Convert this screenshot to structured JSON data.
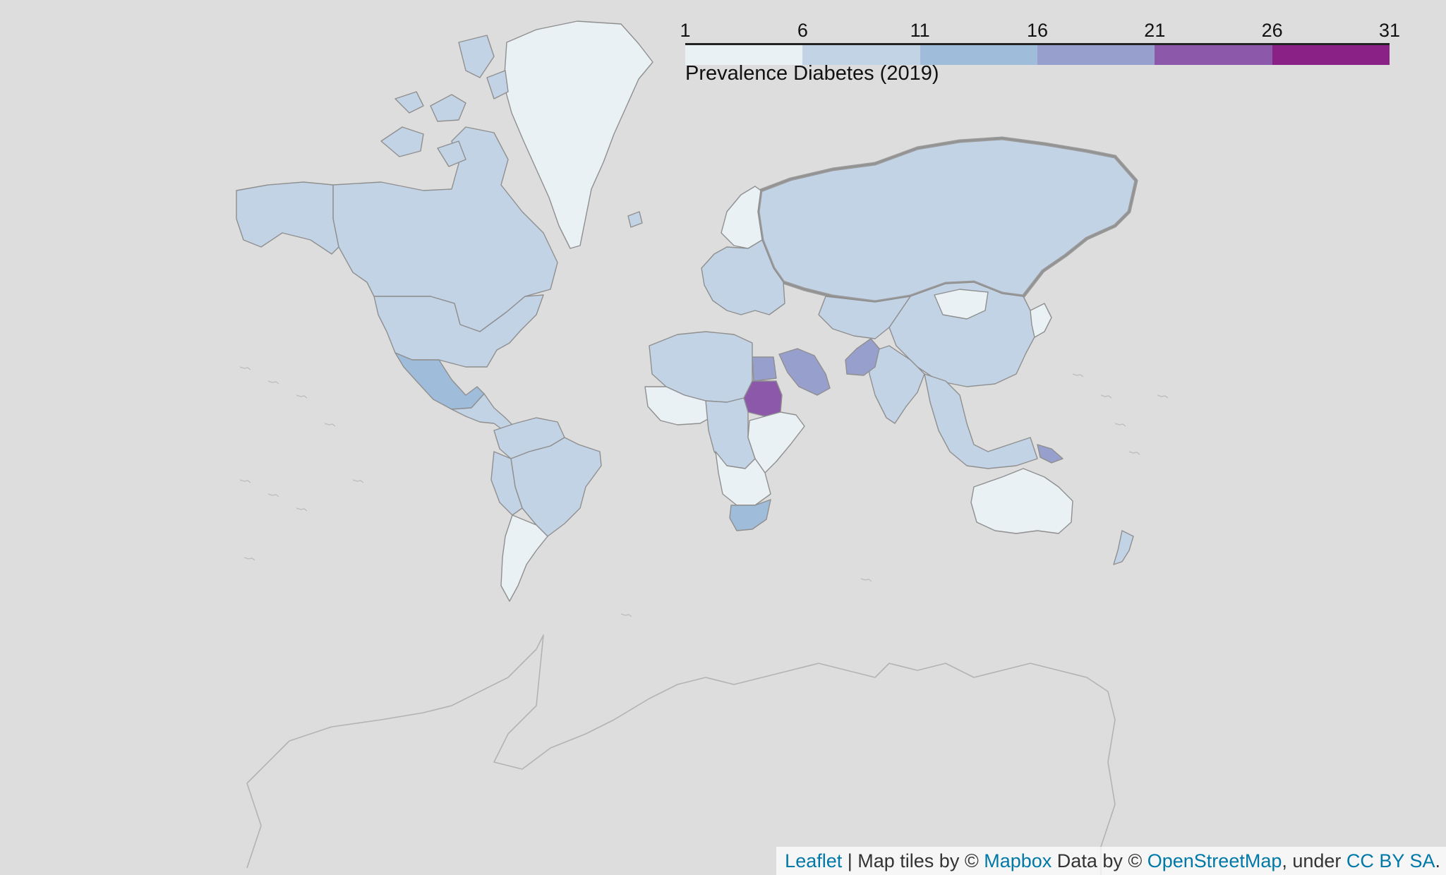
{
  "legend": {
    "title": "Prevalence Diabetes (2019)",
    "ticks": [
      "1",
      "6",
      "11",
      "16",
      "21",
      "26",
      "31"
    ],
    "tick_values": [
      1,
      6,
      11,
      16,
      21,
      26,
      31
    ],
    "colors": [
      "#e9f1f4",
      "#c3d3e6",
      "#a0bcdb",
      "#979fcd",
      "#8c58aa",
      "#8a2187"
    ]
  },
  "attribution": {
    "leaflet": "Leaflet",
    "sep1": " | Map tiles by © ",
    "mapbox": "Mapbox",
    "sep2": " Data by © ",
    "osm": "OpenStreetMap",
    "sep3": ", under ",
    "license": "CC BY SA",
    "end": "."
  },
  "map": {
    "background": "#dddddd",
    "regions": [
      {
        "name": "Greenland",
        "bin": 0
      },
      {
        "name": "Canada",
        "bin": 1
      },
      {
        "name": "Alaska",
        "bin": 1
      },
      {
        "name": "USA",
        "bin": 1
      },
      {
        "name": "Mexico",
        "bin": 2
      },
      {
        "name": "Central America",
        "bin": 1
      },
      {
        "name": "Colombia-Venezuela",
        "bin": 1
      },
      {
        "name": "Brazil",
        "bin": 1
      },
      {
        "name": "Peru-Bolivia",
        "bin": 1
      },
      {
        "name": "Argentina-Chile",
        "bin": 0
      },
      {
        "name": "Russia",
        "bin": 1
      },
      {
        "name": "Europe",
        "bin": 1
      },
      {
        "name": "Scandinavia",
        "bin": 0
      },
      {
        "name": "China",
        "bin": 1
      },
      {
        "name": "Mongolia",
        "bin": 0
      },
      {
        "name": "Central Asia",
        "bin": 1
      },
      {
        "name": "India",
        "bin": 1
      },
      {
        "name": "Pakistan",
        "bin": 3
      },
      {
        "name": "Saudi Arabia",
        "bin": 3
      },
      {
        "name": "Egypt",
        "bin": 3
      },
      {
        "name": "Sudan",
        "bin": 4
      },
      {
        "name": "North Africa",
        "bin": 1
      },
      {
        "name": "West Africa",
        "bin": 0
      },
      {
        "name": "Central Africa",
        "bin": 1
      },
      {
        "name": "East Africa",
        "bin": 0
      },
      {
        "name": "South Africa",
        "bin": 2
      },
      {
        "name": "Southern Africa",
        "bin": 0
      },
      {
        "name": "Southeast Asia",
        "bin": 1
      },
      {
        "name": "Papua New Guinea",
        "bin": 3
      },
      {
        "name": "Japan-Korea",
        "bin": 0
      },
      {
        "name": "Australia",
        "bin": 0
      },
      {
        "name": "New Zealand",
        "bin": 1
      }
    ]
  }
}
